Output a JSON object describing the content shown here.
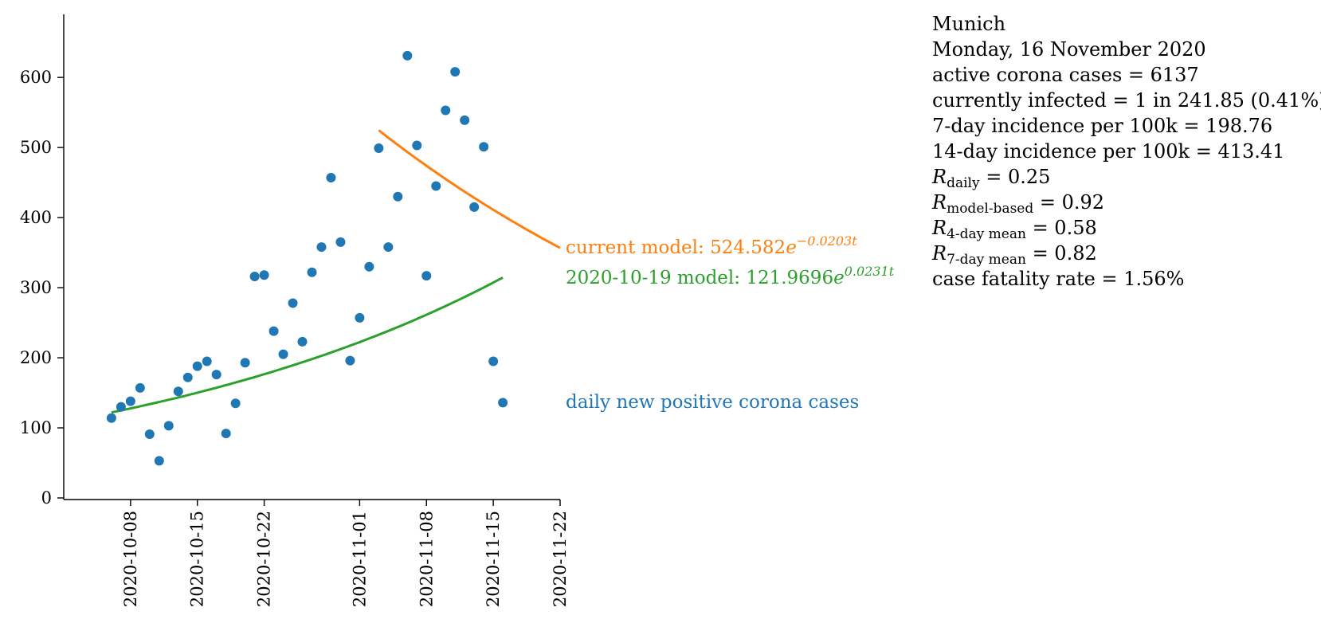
{
  "chart_data": {
    "type": "scatter",
    "title": "",
    "xlabel": "",
    "ylabel": "",
    "x_tick_labels": [
      "2020-10-08",
      "2020-10-15",
      "2020-10-22",
      "2020-11-01",
      "2020-11-08",
      "2020-11-15",
      "2020-11-22"
    ],
    "y_tick_labels": [
      "0",
      "100",
      "200",
      "300",
      "400",
      "500",
      "600"
    ],
    "xlim": [
      "2020-10-01",
      "2020-11-22"
    ],
    "ylim": [
      0,
      690
    ],
    "grid": false,
    "series": [
      {
        "name": "daily new positive corona cases",
        "type": "scatter",
        "color": "#1f77b4",
        "x": [
          "2020-10-06",
          "2020-10-07",
          "2020-10-08",
          "2020-10-09",
          "2020-10-10",
          "2020-10-11",
          "2020-10-12",
          "2020-10-13",
          "2020-10-14",
          "2020-10-15",
          "2020-10-16",
          "2020-10-17",
          "2020-10-18",
          "2020-10-19",
          "2020-10-20",
          "2020-10-21",
          "2020-10-22",
          "2020-10-23",
          "2020-10-24",
          "2020-10-25",
          "2020-10-26",
          "2020-10-27",
          "2020-10-28",
          "2020-10-29",
          "2020-10-30",
          "2020-10-31",
          "2020-11-01",
          "2020-11-02",
          "2020-11-03",
          "2020-11-04",
          "2020-11-05",
          "2020-11-06",
          "2020-11-07",
          "2020-11-08",
          "2020-11-09",
          "2020-11-10",
          "2020-11-11",
          "2020-11-12",
          "2020-11-13",
          "2020-11-14",
          "2020-11-15",
          "2020-11-16"
        ],
        "y": [
          114,
          130,
          138,
          157,
          91,
          53,
          103,
          152,
          172,
          188,
          195,
          176,
          92,
          135,
          193,
          316,
          318,
          238,
          205,
          278,
          223,
          322,
          358,
          457,
          365,
          196,
          257,
          330,
          499,
          358,
          430,
          631,
          503,
          317,
          445,
          553,
          608,
          539,
          415,
          501,
          195,
          136
        ]
      },
      {
        "name": "current model: 524.582e^{−0.0203t}",
        "label_text": "current model: 524.582",
        "label_exp_base": "e",
        "label_exp": "−0.0203t",
        "type": "line",
        "color": "#ff7f0e",
        "model": {
          "a": 524.582,
          "b": -0.0203,
          "t0": "2020-11-03",
          "x_start": "2020-11-03",
          "x_end": "2020-11-22"
        }
      },
      {
        "name": "2020-10-19 model: 121.9696e^{0.0231t}",
        "label_text": "2020-10-19 model: 121.9696",
        "label_exp_base": "e",
        "label_exp": "0.0231t",
        "type": "line",
        "color": "#2ca02c",
        "model": {
          "a": 121.9696,
          "b": 0.0231,
          "t0": "2020-10-06",
          "x_start": "2020-10-06",
          "x_end": "2020-11-16"
        }
      }
    ]
  },
  "info": {
    "city": "Munich",
    "date": "Monday, 16 November 2020",
    "active_cases": "active corona cases = 6137",
    "currently_infected": "currently infected = 1 in 241.85 (0.41%)",
    "incidence_7day": "7-day incidence per 100k = 198.76",
    "incidence_14day": "14-day incidence per 100k = 413.41",
    "r_daily": {
      "symbol": "R",
      "sub": "daily",
      "value": " = 0.25"
    },
    "r_model": {
      "symbol": "R",
      "sub": "model-based",
      "value": " = 0.92"
    },
    "r_4day": {
      "symbol": "R",
      "sub": "4-day mean",
      "value": " = 0.58"
    },
    "r_7day": {
      "symbol": "R",
      "sub": "7-day mean",
      "value": " = 0.82"
    },
    "cfr": "case fatality rate = 1.56%"
  }
}
